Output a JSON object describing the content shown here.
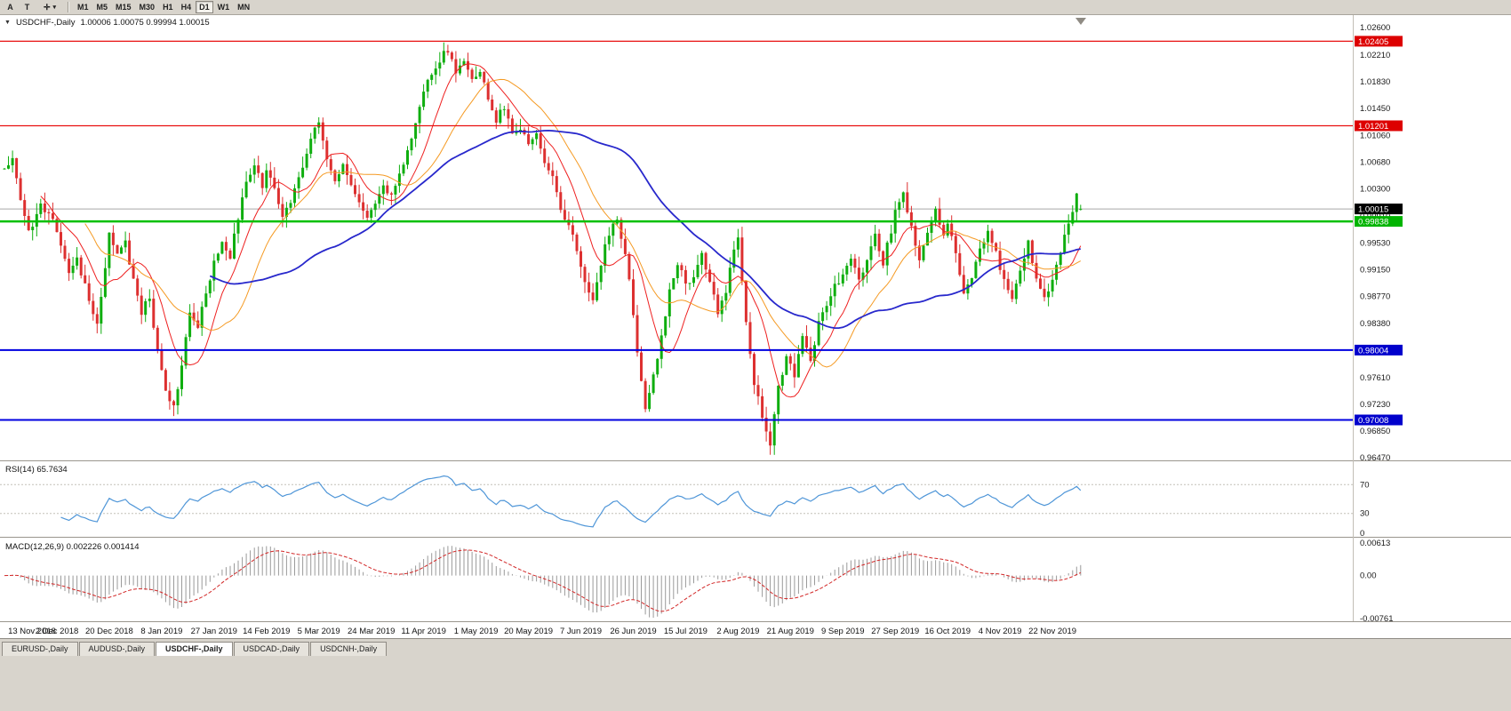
{
  "toolbar": {
    "buttons": [
      {
        "label": "A"
      },
      {
        "label": "T"
      }
    ],
    "cursor_dropdown": {
      "icon": "✛",
      "chevron": "▾"
    },
    "timeframes": [
      "M1",
      "M5",
      "M15",
      "M30",
      "H1",
      "H4",
      "D1",
      "W1",
      "MN"
    ],
    "active_timeframe": "D1"
  },
  "header": {
    "collapse_icon": "▼",
    "symbol": "USDCHF-,Daily",
    "ohlc": "1.00006 1.00075 0.99994 1.00015"
  },
  "tabs": {
    "items": [
      "EURUSD-,Daily",
      "AUDUSD-,Daily",
      "USDCHF-,Daily",
      "USDCAD-,Daily",
      "USDCNH-,Daily"
    ],
    "active": 2
  },
  "chart_data": {
    "type": "candlestick",
    "title": "USDCHF-,Daily",
    "x_labels": [
      "13 Nov 2018",
      "2 Dec 2018",
      "20 Dec 2018",
      "8 Jan 2019",
      "27 Jan 2019",
      "14 Feb 2019",
      "5 Mar 2019",
      "24 Mar 2019",
      "11 Apr 2019",
      "1 May 2019",
      "20 May 2019",
      "7 Jun 2019",
      "26 Jun 2019",
      "15 Jul 2019",
      "2 Aug 2019",
      "21 Aug 2019",
      "9 Sep 2019",
      "27 Sep 2019",
      "16 Oct 2019",
      "4 Nov 2019",
      "22 Nov 2019"
    ],
    "bars_per_label": 13,
    "y_axis": {
      "max": 1.026,
      "min": 0.9647,
      "ticks": [
        "1.02600",
        "1.02210",
        "1.01830",
        "1.01450",
        "1.01060",
        "1.00680",
        "1.00300",
        "0.99910",
        "0.99530",
        "0.99150",
        "0.98770",
        "0.98380",
        "0.97610",
        "0.97230",
        "0.96850",
        "0.96470"
      ]
    },
    "levels": [
      {
        "value": 1.02405,
        "label": "1.02405",
        "color": "#e81010",
        "badge": "#dd0000",
        "width": 1.3
      },
      {
        "value": 1.01201,
        "label": "1.01201",
        "color": "#e81010",
        "badge": "#dd0000",
        "width": 1.3
      },
      {
        "value": 0.99838,
        "label": "0.99838",
        "color": "#00c000",
        "badge": "#00b400",
        "width": 2.5
      },
      {
        "value": 0.98004,
        "label": "0.98004",
        "color": "#0000e0",
        "badge": "#0000cc",
        "width": 2
      },
      {
        "value": 0.97008,
        "label": "0.97008",
        "color": "#0000e0",
        "badge": "#0000cc",
        "width": 2
      }
    ],
    "bid": {
      "value": 1.00015,
      "label": "1.00015",
      "badge": "#000000",
      "line_color": "#a8a8a8"
    },
    "colors": {
      "up": "#0fae0f",
      "down": "#dd3030"
    },
    "moving_averages": [
      {
        "period": 10,
        "color": "#ee2020",
        "width": 1
      },
      {
        "period": 21,
        "color": "#f59a23",
        "width": 1
      },
      {
        "period": 52,
        "color": "#2828cc",
        "width": 1.8
      }
    ],
    "candles": {
      "count": 268,
      "seed": 20191129,
      "noise": 0.0012,
      "wick": 0.0016,
      "last_bar": {
        "open": 1.00006,
        "high": 1.00075,
        "low": 0.99994,
        "close": 1.00015
      },
      "anchors": [
        [
          0,
          1.006
        ],
        [
          2,
          1.0078
        ],
        [
          4,
          1.002
        ],
        [
          6,
          0.9968
        ],
        [
          9,
          1.0008
        ],
        [
          12,
          0.9988
        ],
        [
          14,
          0.9948
        ],
        [
          16,
          0.9905
        ],
        [
          18,
          0.9932
        ],
        [
          21,
          0.9872
        ],
        [
          23,
          0.9838
        ],
        [
          26,
          0.9962
        ],
        [
          28,
          0.9935
        ],
        [
          30,
          0.9952
        ],
        [
          32,
          0.9898
        ],
        [
          34,
          0.9856
        ],
        [
          36,
          0.9876
        ],
        [
          38,
          0.98
        ],
        [
          40,
          0.9742
        ],
        [
          42,
          0.9718
        ],
        [
          44,
          0.9775
        ],
        [
          46,
          0.9852
        ],
        [
          48,
          0.9836
        ],
        [
          50,
          0.9882
        ],
        [
          52,
          0.9925
        ],
        [
          54,
          0.9958
        ],
        [
          56,
          0.9936
        ],
        [
          58,
          0.9986
        ],
        [
          60,
          1.0042
        ],
        [
          62,
          1.0066
        ],
        [
          64,
          1.0036
        ],
        [
          65,
          1.0058
        ],
        [
          67,
          1.0028
        ],
        [
          69,
          0.9996
        ],
        [
          71,
          1.0016
        ],
        [
          73,
          1.0046
        ],
        [
          75,
          1.0086
        ],
        [
          77,
          1.0112
        ],
        [
          78,
          1.012
        ],
        [
          80,
          1.0076
        ],
        [
          82,
          1.0046
        ],
        [
          84,
          1.0062
        ],
        [
          86,
          1.0032
        ],
        [
          88,
          1.0006
        ],
        [
          90,
          0.9986
        ],
        [
          92,
          1.0006
        ],
        [
          94,
          1.0036
        ],
        [
          96,
          1.0022
        ],
        [
          98,
          1.0052
        ],
        [
          100,
          1.0086
        ],
        [
          102,
          1.0126
        ],
        [
          104,
          1.0166
        ],
        [
          106,
          1.0196
        ],
        [
          108,
          1.0216
        ],
        [
          110,
          1.0226
        ],
        [
          112,
          1.0196
        ],
        [
          114,
          1.0214
        ],
        [
          116,
          1.0186
        ],
        [
          118,
          1.0196
        ],
        [
          120,
          1.0162
        ],
        [
          122,
          1.0128
        ],
        [
          124,
          1.0146
        ],
        [
          126,
          1.0106
        ],
        [
          128,
          1.0116
        ],
        [
          130,
          1.0096
        ],
        [
          132,
          1.0106
        ],
        [
          134,
          1.0066
        ],
        [
          136,
          1.0046
        ],
        [
          138,
          1.0006
        ],
        [
          140,
          0.9976
        ],
        [
          142,
          0.9942
        ],
        [
          144,
          0.9896
        ],
        [
          146,
          0.9876
        ],
        [
          148,
          0.9926
        ],
        [
          150,
          0.9966
        ],
        [
          152,
          0.9986
        ],
        [
          154,
          0.9936
        ],
        [
          156,
          0.9856
        ],
        [
          157,
          0.9796
        ],
        [
          159,
          0.9722
        ],
        [
          161,
          0.9762
        ],
        [
          163,
          0.9822
        ],
        [
          165,
          0.9886
        ],
        [
          167,
          0.9922
        ],
        [
          169,
          0.9896
        ],
        [
          171,
          0.9906
        ],
        [
          173,
          0.9936
        ],
        [
          175,
          0.9896
        ],
        [
          177,
          0.9856
        ],
        [
          179,
          0.9886
        ],
        [
          181,
          0.9942
        ],
        [
          182,
          0.9956
        ],
        [
          184,
          0.9836
        ],
        [
          186,
          0.9752
        ],
        [
          188,
          0.9706
        ],
        [
          190,
          0.966
        ],
        [
          192,
          0.9746
        ],
        [
          194,
          0.9792
        ],
        [
          196,
          0.9762
        ],
        [
          198,
          0.9822
        ],
        [
          200,
          0.9786
        ],
        [
          202,
          0.9836
        ],
        [
          204,
          0.9866
        ],
        [
          206,
          0.9892
        ],
        [
          208,
          0.9906
        ],
        [
          210,
          0.9936
        ],
        [
          212,
          0.9896
        ],
        [
          214,
          0.9932
        ],
        [
          216,
          0.9962
        ],
        [
          218,
          0.9926
        ],
        [
          220,
          0.9972
        ],
        [
          221,
          1.0002
        ],
        [
          223,
          1.0026
        ],
        [
          225,
          0.9976
        ],
        [
          227,
          0.9932
        ],
        [
          229,
          0.9966
        ],
        [
          231,
          0.9996
        ],
        [
          233,
          0.9966
        ],
        [
          234,
          0.9986
        ],
        [
          236,
          0.9936
        ],
        [
          238,
          0.9876
        ],
        [
          240,
          0.9906
        ],
        [
          242,
          0.9942
        ],
        [
          244,
          0.9972
        ],
        [
          246,
          0.9936
        ],
        [
          248,
          0.9896
        ],
        [
          250,
          0.9872
        ],
        [
          252,
          0.9912
        ],
        [
          254,
          0.9952
        ],
        [
          256,
          0.9906
        ],
        [
          258,
          0.9876
        ],
        [
          260,
          0.9896
        ],
        [
          262,
          0.9936
        ],
        [
          264,
          0.9986
        ],
        [
          266,
          1.002
        ],
        [
          267,
          1.00015
        ]
      ]
    },
    "rsi": {
      "period": 14,
      "label": "RSI(14) 65.7634",
      "color": "#4f96d8",
      "levels": [
        70,
        30
      ],
      "axis_labels": [
        {
          "text": "70",
          "value": 70
        },
        {
          "text": "30",
          "value": 30
        },
        {
          "text": "0",
          "value": 0
        }
      ]
    },
    "macd": {
      "label": "MACD(12,26,9) 0.002226 0.001414",
      "hist_color": "#9a9a9a",
      "signal_color": "#d22727",
      "range": [
        -0.00761,
        0.00613
      ],
      "axis_labels": [
        {
          "text": "0.00613",
          "at": "top"
        },
        {
          "text": "0.00",
          "at": "zero"
        },
        {
          "text": "-0.00761",
          "at": "bottom"
        }
      ]
    }
  }
}
